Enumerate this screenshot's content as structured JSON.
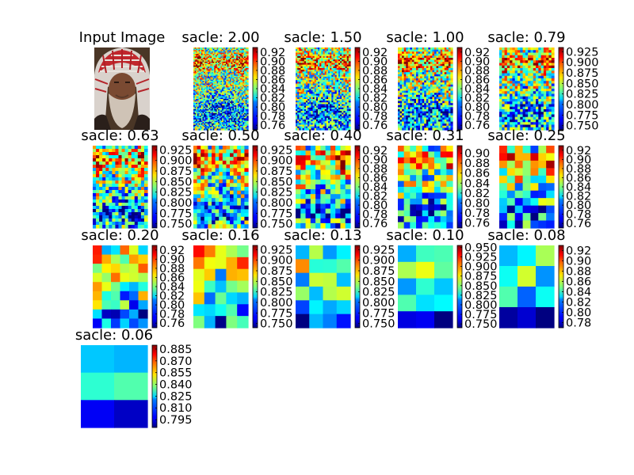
{
  "chart_data": {
    "type": "heatmap",
    "colormap": "jet",
    "input": {
      "title": "Input Image",
      "subject": "portrait photo of a bearded man wearing a red and white checkered headscarf"
    },
    "panels": [
      {
        "title": "sacle: 2.00",
        "detail": 64,
        "focus": 0.0,
        "clim": [
          0.75,
          0.93
        ],
        "ticks": [
          "0.76",
          "0.78",
          "0.80",
          "0.82",
          "0.84",
          "0.86",
          "0.88",
          "0.90",
          "0.92"
        ]
      },
      {
        "title": "sacle: 1.50",
        "detail": 48,
        "focus": 0.0,
        "clim": [
          0.75,
          0.93
        ],
        "ticks": [
          "0.76",
          "0.78",
          "0.80",
          "0.82",
          "0.84",
          "0.86",
          "0.88",
          "0.90",
          "0.92"
        ]
      },
      {
        "title": "sacle: 1.00",
        "detail": 40,
        "focus": 0.0,
        "clim": [
          0.75,
          0.93
        ],
        "ticks": [
          "0.76",
          "0.78",
          "0.80",
          "0.82",
          "0.84",
          "0.86",
          "0.88",
          "0.90",
          "0.92"
        ]
      },
      {
        "title": "sacle: 0.79",
        "detail": 32,
        "focus": 0.0,
        "clim": [
          0.74,
          0.935
        ],
        "ticks": [
          "0.750",
          "0.775",
          "0.800",
          "0.825",
          "0.850",
          "0.875",
          "0.900",
          "0.925"
        ]
      },
      {
        "title": "sacle: 0.63",
        "detail": 26,
        "focus": 0.0,
        "clim": [
          0.74,
          0.935
        ],
        "ticks": [
          "0.750",
          "0.775",
          "0.800",
          "0.825",
          "0.850",
          "0.875",
          "0.900",
          "0.925"
        ]
      },
      {
        "title": "sacle: 0.50",
        "detail": 22,
        "focus": 0.0,
        "clim": [
          0.74,
          0.935
        ],
        "ticks": [
          "0.750",
          "0.775",
          "0.800",
          "0.825",
          "0.850",
          "0.875",
          "0.900",
          "0.925"
        ]
      },
      {
        "title": "sacle: 0.40",
        "detail": 17,
        "focus": 0.0,
        "clim": [
          0.75,
          0.93
        ],
        "ticks": [
          "0.76",
          "0.78",
          "0.80",
          "0.82",
          "0.84",
          "0.86",
          "0.88",
          "0.90",
          "0.92"
        ]
      },
      {
        "title": "sacle: 0.31",
        "detail": 14,
        "focus": 0.1,
        "clim": [
          0.75,
          0.915
        ],
        "ticks": [
          "0.76",
          "0.78",
          "0.80",
          "0.82",
          "0.84",
          "0.86",
          "0.88",
          "0.90"
        ]
      },
      {
        "title": "sacle: 0.25",
        "detail": 11,
        "focus": 0.1,
        "clim": [
          0.75,
          0.93
        ],
        "ticks": [
          "0.76",
          "0.78",
          "0.80",
          "0.82",
          "0.84",
          "0.86",
          "0.88",
          "0.90",
          "0.92"
        ]
      },
      {
        "title": "sacle: 0.20",
        "detail": 9,
        "focus": 0.15,
        "clim": [
          0.75,
          0.93
        ],
        "ticks": [
          "0.76",
          "0.78",
          "0.80",
          "0.82",
          "0.84",
          "0.86",
          "0.88",
          "0.90",
          "0.92"
        ]
      },
      {
        "title": "sacle: 0.16",
        "detail": 7,
        "focus": 0.2,
        "clim": [
          0.74,
          0.935
        ],
        "ticks": [
          "0.750",
          "0.775",
          "0.800",
          "0.825",
          "0.850",
          "0.875",
          "0.900",
          "0.925"
        ]
      },
      {
        "title": "sacle: 0.13",
        "detail": 6,
        "focus": 0.45,
        "clim": [
          0.74,
          0.935
        ],
        "ticks": [
          "0.750",
          "0.775",
          "0.800",
          "0.825",
          "0.850",
          "0.875",
          "0.900",
          "0.925"
        ]
      },
      {
        "title": "sacle: 0.10",
        "detail": 5,
        "focus": 0.6,
        "clim": [
          0.74,
          0.955
        ],
        "ticks": [
          "0.750",
          "0.775",
          "0.800",
          "0.825",
          "0.850",
          "0.875",
          "0.900",
          "0.925",
          "0.950"
        ]
      },
      {
        "title": "sacle: 0.08",
        "detail": 4,
        "focus": 0.7,
        "clim": [
          0.77,
          0.93
        ],
        "ticks": [
          "0.78",
          "0.80",
          "0.82",
          "0.84",
          "0.86",
          "0.88",
          "0.90",
          "0.92"
        ]
      },
      {
        "title": "sacle: 0.06",
        "detail": 3,
        "focus": 0.75,
        "clim": [
          0.785,
          0.89
        ],
        "ticks": [
          "0.795",
          "0.810",
          "0.825",
          "0.840",
          "0.855",
          "0.870",
          "0.885"
        ]
      }
    ]
  }
}
